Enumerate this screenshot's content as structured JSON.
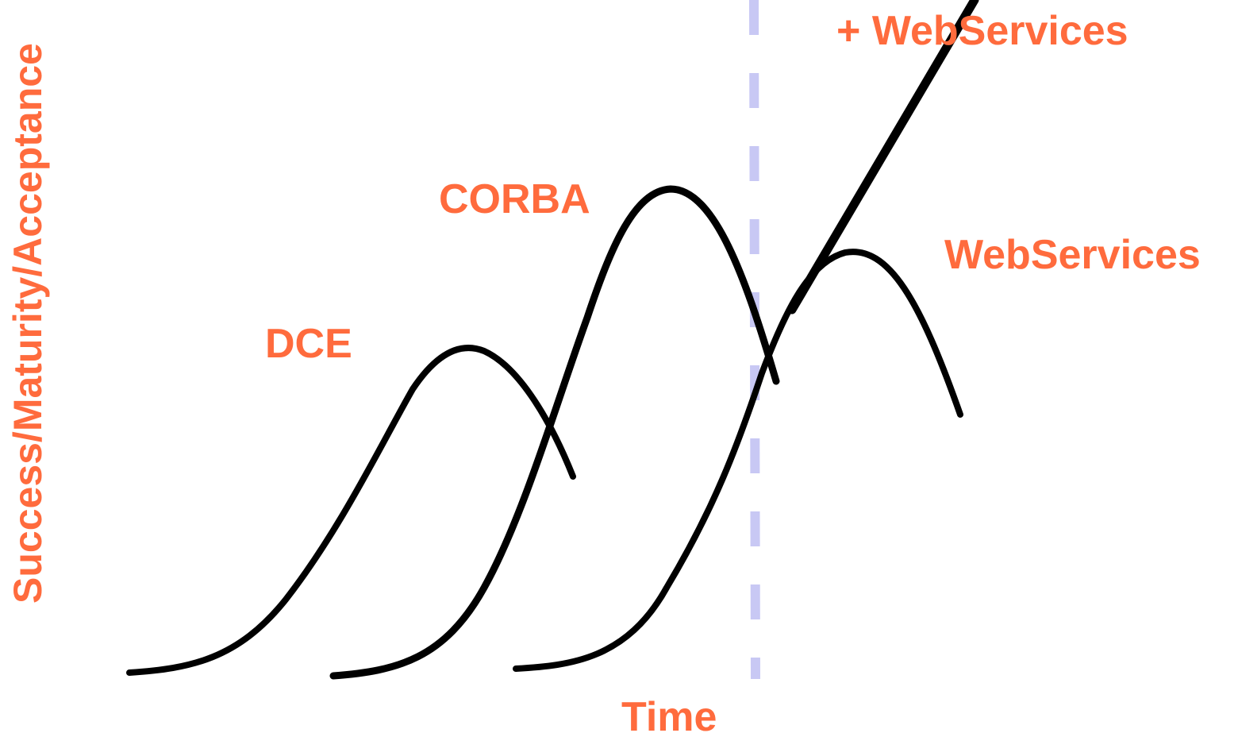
{
  "labels": {
    "y_axis": "Success/Maturity/Acceptance",
    "x_axis": "Time",
    "dce": "DCE",
    "corba": "CORBA",
    "webservices": "WebServices",
    "plus_webservices": "+ WebServices"
  },
  "colors": {
    "label": "#ff6b3d",
    "curve": "#000000",
    "divider": "#c8c8f4"
  }
}
